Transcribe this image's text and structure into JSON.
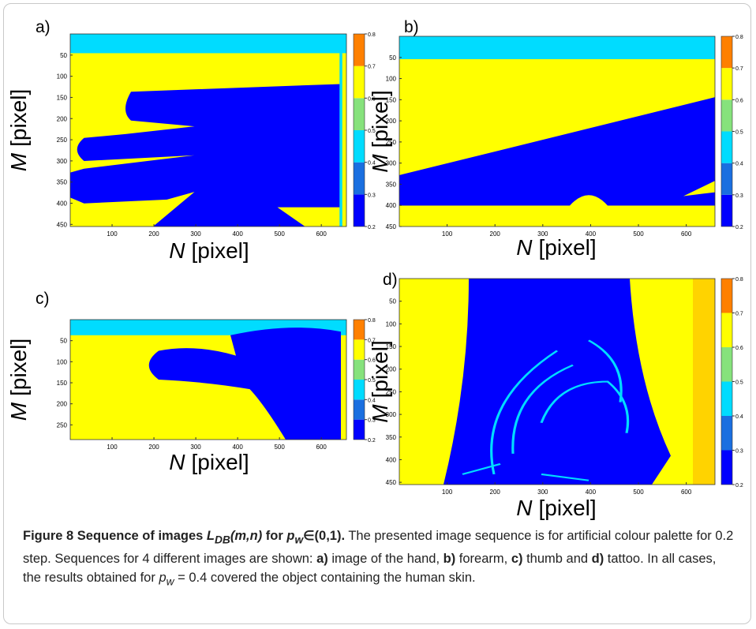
{
  "panels": [
    {
      "label": "a)",
      "x_var": "N",
      "x_unit": "[pixel]",
      "y_var": "M",
      "y_unit": "[pixel]",
      "xlim": [
        0,
        660
      ],
      "ylim": [
        0,
        455
      ],
      "xticks": [
        100,
        200,
        300,
        400,
        500,
        600
      ],
      "yticks": [
        50,
        100,
        150,
        200,
        250,
        300,
        350,
        400,
        450
      ],
      "clim": [
        0.2,
        0.8
      ],
      "cticks": [
        0.2,
        0.3,
        0.4,
        0.5,
        0.6,
        0.7,
        0.8
      ]
    },
    {
      "label": "b)",
      "x_var": "N",
      "x_unit": "[pixel]",
      "y_var": "M",
      "y_unit": "[pixel]",
      "xlim": [
        0,
        660
      ],
      "ylim": [
        0,
        450
      ],
      "xticks": [
        100,
        200,
        300,
        400,
        500,
        600
      ],
      "yticks": [
        50,
        100,
        150,
        200,
        250,
        300,
        350,
        400,
        450
      ],
      "clim": [
        0.2,
        0.8
      ],
      "cticks": [
        0.2,
        0.3,
        0.4,
        0.5,
        0.6,
        0.7,
        0.8
      ]
    },
    {
      "label": "c)",
      "x_var": "N",
      "x_unit": "[pixel]",
      "y_var": "M",
      "y_unit": "[pixel]",
      "xlim": [
        0,
        660
      ],
      "ylim": [
        0,
        285
      ],
      "xticks": [
        100,
        200,
        300,
        400,
        500,
        600
      ],
      "yticks": [
        50,
        100,
        150,
        200,
        250
      ],
      "clim": [
        0.2,
        0.8
      ],
      "cticks": [
        0.2,
        0.3,
        0.4,
        0.5,
        0.6,
        0.7,
        0.8
      ]
    },
    {
      "label": "d)",
      "x_var": "N",
      "x_unit": "[pixel]",
      "y_var": "M",
      "y_unit": "[pixel]",
      "xlim": [
        0,
        660
      ],
      "ylim": [
        0,
        455
      ],
      "xticks": [
        100,
        200,
        300,
        400,
        500,
        600
      ],
      "yticks": [
        50,
        100,
        150,
        200,
        250,
        300,
        350,
        400,
        450
      ],
      "clim": [
        0.2,
        0.8
      ],
      "cticks": [
        0.2,
        0.3,
        0.4,
        0.5,
        0.6,
        0.7,
        0.8
      ]
    }
  ],
  "colorbar_colors": [
    "#0000ff",
    "#1a6fe0",
    "#00dcff",
    "#86e27c",
    "#ffff00",
    "#ff8000"
  ],
  "caption": [
    "Figure 8 Sequence of images ",
    "L",
    "DB",
    "(m,n)",
    " for ",
    "p",
    "w",
    "∈(0,1).",
    " The presented image sequence is for artificial colour palette for 0.2 step. Sequences for 4 different images are shown: ",
    "a)",
    " image of the hand, ",
    "b)",
    " forearm, ",
    "c)",
    " thumb and ",
    "d)",
    " tattoo. In all cases, the results obtained for ",
    "p",
    "w",
    " = 0.4 covered the object containing the human skin."
  ]
}
